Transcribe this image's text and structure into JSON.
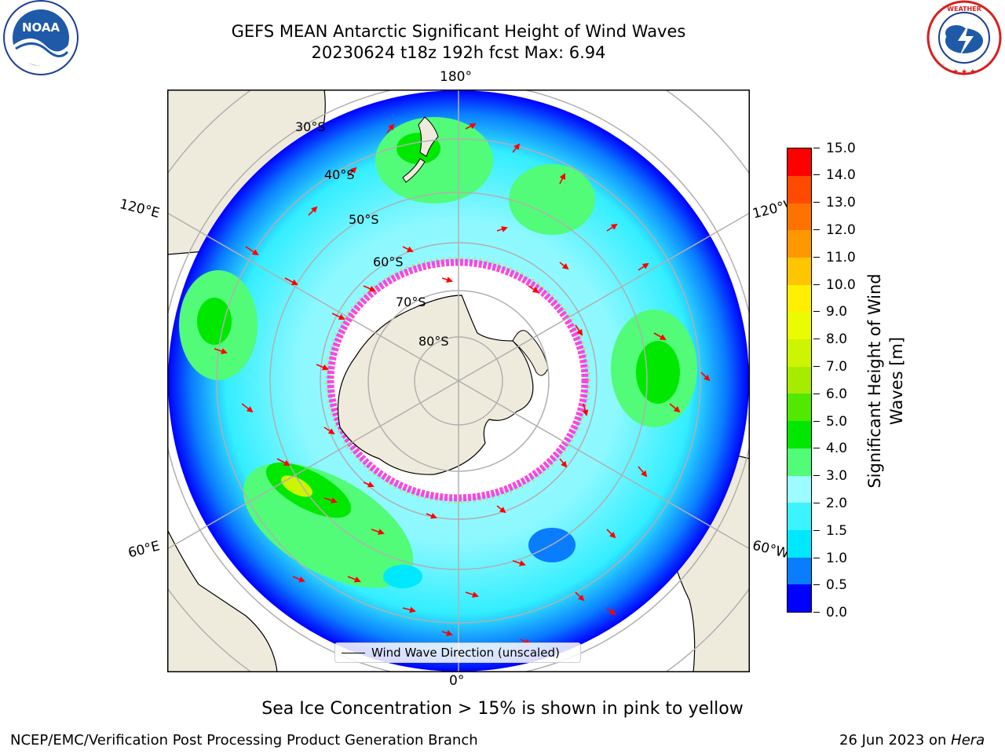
{
  "header": {
    "title_line1": "GEFS MEAN Antarctic Significant Height of Wind Waves",
    "title_line2": "20230624 t18z 192h fcst   Max: 6.94"
  },
  "logos": {
    "left": {
      "icon": "noaa-logo-icon",
      "text": "NOAA"
    },
    "right": {
      "icon": "nws-logo-icon",
      "text": "NATIONAL WEATHER SERVICE"
    }
  },
  "map": {
    "projection": "south-polar-stereographic",
    "longitude_labels": {
      "top": "180°",
      "bottom": "0°",
      "upper_left": "120°E",
      "lower_left": "60°E",
      "upper_right": "120°W",
      "lower_right": "60°W"
    },
    "latitude_labels": [
      "30°S",
      "40°S",
      "50°S",
      "60°S",
      "70°S",
      "80°S"
    ],
    "colors": {
      "land": "#efebdc",
      "sea_ice": "#ffffff",
      "ice_edge": "#ff44dd",
      "arrows": "#ff0000",
      "graticule": "#b0b0b0"
    },
    "legend_label": "Wind Wave Direction (unscaled)"
  },
  "colorbar": {
    "title": "Significant Height of Wind Waves [m]",
    "ticks": [
      "0.0",
      "0.5",
      "1.0",
      "1.5",
      "2.0",
      "3.0",
      "4.0",
      "5.0",
      "6.0",
      "7.0",
      "8.0",
      "9.0",
      "10.0",
      "11.0",
      "12.0",
      "13.0",
      "14.0",
      "15.0"
    ],
    "colors": [
      "#0000ff",
      "#0a7dff",
      "#00e8ff",
      "#3cf4ff",
      "#9cfcff",
      "#52fb78",
      "#00e800",
      "#52e800",
      "#a7ec00",
      "#cdf400",
      "#ecfc00",
      "#ffee00",
      "#ffc500",
      "#ff9800",
      "#ff7200",
      "#ff4a00",
      "#ff0000"
    ]
  },
  "footer": {
    "caption": "Sea Ice Concentration > 15% is shown in pink to yellow",
    "credit_left": "NCEP/EMC/Verification Post Processing Product Generation Branch",
    "credit_date": "26 Jun 2023 on ",
    "credit_host": "Hera"
  }
}
